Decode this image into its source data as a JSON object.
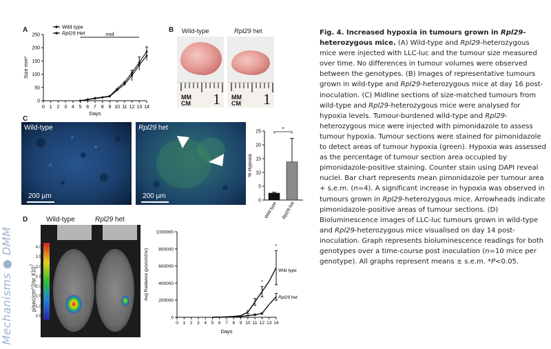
{
  "watermark": "Mechanisms ● DMM",
  "panels": {
    "A": "A",
    "B": "B",
    "C": "C",
    "D": "D"
  },
  "panel_b": {
    "wild_type_label": "Wild-type",
    "het_gene": "Rpl29",
    "het_suffix": " het",
    "ruler_units": [
      "MM",
      "CM"
    ],
    "ruler_number": "1"
  },
  "panel_c": {
    "wild_type_label": "Wild-type",
    "het_gene": "Rpl29",
    "het_suffix": " het",
    "scale_label": "200 µm"
  },
  "panel_d": {
    "wild_type_label": "Wild-type",
    "het_gene": "Rpl29",
    "het_suffix": " het",
    "colorbar_title": "p/sec/cm^2/sr",
    "colorbar_exp": "X10",
    "colorbar_exp_power": "7",
    "colorbar_ticks": [
      "4.0",
      "3.5",
      "3.0",
      "2.5",
      "2.0",
      "1.5",
      "1.0",
      "0.5"
    ]
  },
  "colors": {
    "caption_text": "#222222",
    "bar_wildtype": "#111111",
    "bar_het": "#8a8a8a",
    "micro_dapi": "#1f4e8a",
    "micro_het_green": "#3a8a5a"
  },
  "caption": {
    "title_prefix": "Fig. 4. Increased hypoxia in tumours grown in ",
    "title_gene": "Rpl29",
    "title_suffix": "-heterozygous mice.",
    "lines": [
      " (A) Wild-type and ",
      "Rpl29",
      "-heterozygous mice were injected with LLC-luc and the tumour size measured over time. No differences in tumour volumes were observed between the genotypes. (B) Images of representative tumours grown in wild-type and ",
      "Rpl29",
      "-heterozygous mice at day 16 post-inoculation. (C) Midline sections of size-matched tumours from wild-type and ",
      "Rpl29",
      "-heterozygous mice were analysed for hypoxia levels. Tumour-burdened wild-type and ",
      "Rpl29",
      "-heterozygous mice were injected with pimonidazole to assess tumour hypoxia. Tumour sections were stained for pimonidazole to detect areas of tumour hypoxia (green). Hypoxia was assessed as the percentage of tumour section area occupied by pimonidazole-positive staining. Counter stain using DAPI reveal nuclei. Bar chart represents mean pimonidazole per tumour area + s.e.m. (",
      "n",
      "=4). A significant increase in hypoxia was observed in tumours grown in ",
      "Rpl29",
      "-heterozygous mice. Arrowheads indicate pimonidazole-positive areas of tumour sections. (D) Bioluminescence images of LLC-luc tumours grown in wild-type and ",
      "Rpl29",
      "-heterozygous mice visualised on day 14 post-inoculation. Graph represents bioluminescence readings for both genotypes over a time-course post inoculation (",
      "n",
      "=10 mice per genotype). All graphs represent means ± s.e.m. *",
      "P",
      "<0.05."
    ]
  },
  "chart_data": [
    {
      "type": "line",
      "title": "",
      "xlabel": "Days",
      "ylabel": "Size mm³",
      "x": [
        0,
        1,
        2,
        3,
        4,
        5,
        6,
        7,
        8,
        9,
        10,
        11,
        12,
        13,
        14
      ],
      "xlim": [
        0,
        14
      ],
      "ylim": [
        0,
        250
      ],
      "y_ticks": [
        0,
        50,
        100,
        150,
        200,
        250
      ],
      "legend": [
        "Wild type",
        "Rpl29 Het"
      ],
      "annotation": "nsd",
      "series": [
        {
          "name": "Wild type",
          "x": [
            5,
            6,
            7,
            8,
            9,
            10,
            11,
            12,
            13,
            14
          ],
          "values": [
            0,
            5,
            10,
            13,
            18,
            45,
            70,
            105,
            145,
            185
          ]
        },
        {
          "name": "Rpl29 Het",
          "x": [
            5,
            6,
            7,
            8,
            9,
            10,
            11,
            12,
            13,
            14
          ],
          "values": [
            0,
            4,
            8,
            12,
            16,
            40,
            62,
            95,
            135,
            170
          ]
        }
      ]
    },
    {
      "type": "bar",
      "title": "",
      "ylabel": "% Hypoxia",
      "categories": [
        "Wild type",
        "Rpl29 het"
      ],
      "values": [
        2.5,
        13.8
      ],
      "errors": [
        0.3,
        8.5
      ],
      "ylim": [
        0,
        25
      ],
      "y_ticks": [
        0,
        5,
        10,
        15,
        20,
        25
      ],
      "annotation": "*"
    },
    {
      "type": "line",
      "title": "",
      "xlabel": "Days",
      "ylabel": "Avg Radiance (p/s/cm2/sr)",
      "x": [
        0,
        1,
        2,
        3,
        4,
        5,
        6,
        7,
        8,
        9,
        10,
        11,
        12,
        13,
        14
      ],
      "xlim": [
        0,
        14
      ],
      "ylim": [
        0,
        1000000
      ],
      "y_ticks": [
        0,
        200000,
        400000,
        600000,
        800000,
        1000000
      ],
      "series": [
        {
          "name": "Wild type",
          "x": [
            5,
            6,
            7,
            8,
            9,
            10,
            11,
            12,
            13,
            14
          ],
          "values": [
            0,
            2000,
            5000,
            10000,
            20000,
            60000,
            180000,
            300000,
            420000,
            580000
          ],
          "errors": [
            0,
            0,
            0,
            0,
            0,
            15000,
            40000,
            60000,
            0,
            200000
          ]
        },
        {
          "name": "Rpl29 het",
          "x": [
            5,
            6,
            7,
            8,
            9,
            10,
            11,
            12,
            13,
            14
          ],
          "values": [
            0,
            1000,
            3000,
            6000,
            10000,
            20000,
            30000,
            45000,
            150000,
            240000
          ],
          "errors": [
            0,
            0,
            0,
            0,
            0,
            5000,
            8000,
            10000,
            0,
            40000
          ]
        }
      ],
      "annotations": [
        "*",
        "*"
      ]
    }
  ]
}
